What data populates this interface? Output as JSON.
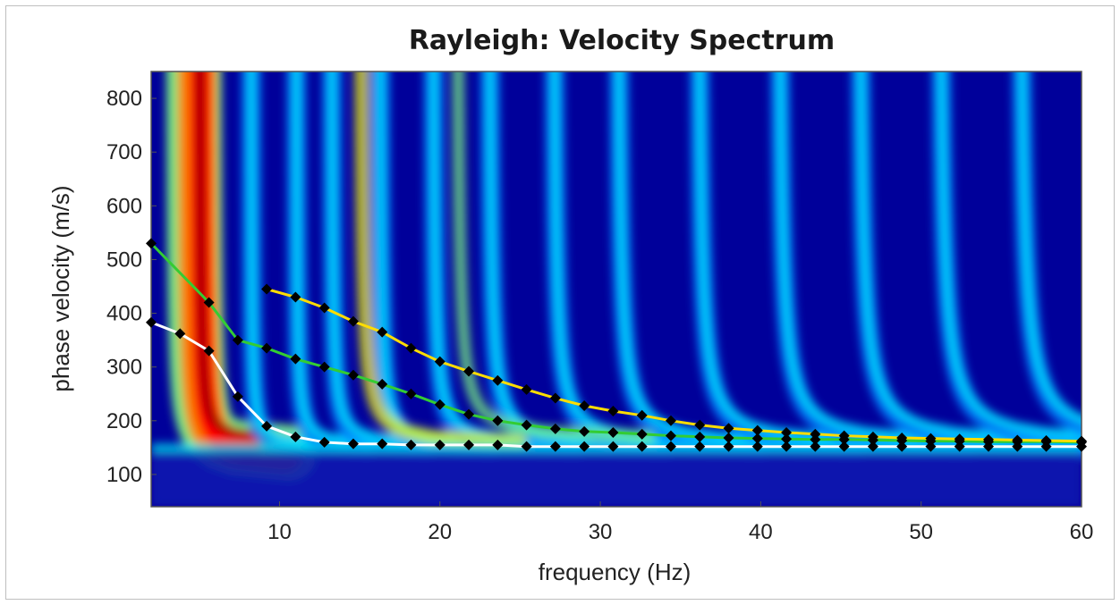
{
  "chart_data": {
    "type": "heatmap",
    "title": "Rayleigh: Velocity Spectrum",
    "xlabel": "frequency (Hz)",
    "ylabel": "phase velocity (m/s)",
    "xlim": [
      2,
      60
    ],
    "ylim": [
      40,
      850
    ],
    "xticks": [
      10,
      20,
      30,
      40,
      50,
      60
    ],
    "yticks": [
      100,
      200,
      300,
      400,
      500,
      600,
      700,
      800
    ],
    "colormap": [
      "#000080",
      "#0000ff",
      "#0080ff",
      "#00ffff",
      "#80ff80",
      "#ffff00",
      "#ff8000",
      "#ff0000",
      "#800000"
    ],
    "series": [
      {
        "line_color": "#ffffff",
        "marker_color": "#000000",
        "points": [
          [
            2,
            383
          ],
          [
            3.8,
            362
          ],
          [
            5.6,
            330
          ],
          [
            7.4,
            245
          ],
          [
            9.2,
            190
          ],
          [
            11,
            170
          ],
          [
            12.8,
            160
          ],
          [
            14.6,
            157
          ],
          [
            16.4,
            157
          ],
          [
            18.2,
            155
          ],
          [
            20,
            155
          ],
          [
            21.8,
            155
          ],
          [
            23.6,
            155
          ],
          [
            25.4,
            152
          ],
          [
            27.2,
            152
          ],
          [
            29,
            152
          ],
          [
            30.8,
            152
          ],
          [
            32.6,
            152
          ],
          [
            34.4,
            152
          ],
          [
            36.2,
            152
          ],
          [
            38,
            152
          ],
          [
            39.8,
            152
          ],
          [
            41.6,
            152
          ],
          [
            43.4,
            152
          ],
          [
            45.2,
            152
          ],
          [
            47,
            152
          ],
          [
            48.8,
            152
          ],
          [
            50.6,
            152
          ],
          [
            52.4,
            152
          ],
          [
            54.2,
            152
          ],
          [
            56,
            152
          ],
          [
            57.8,
            152
          ],
          [
            60,
            152
          ]
        ]
      },
      {
        "line_color": "#33cc33",
        "marker_color": "#000000",
        "points": [
          [
            2,
            530
          ],
          [
            5.6,
            420
          ],
          [
            7.4,
            350
          ],
          [
            9.2,
            335
          ],
          [
            11,
            315
          ],
          [
            12.8,
            300
          ],
          [
            14.6,
            285
          ],
          [
            16.4,
            268
          ],
          [
            18.2,
            250
          ],
          [
            20,
            230
          ],
          [
            21.8,
            212
          ],
          [
            23.6,
            200
          ],
          [
            25.4,
            192
          ],
          [
            27.2,
            185
          ],
          [
            29,
            180
          ],
          [
            30.8,
            178
          ],
          [
            32.6,
            175
          ],
          [
            34.4,
            172
          ],
          [
            36.2,
            170
          ],
          [
            38,
            168
          ],
          [
            39.8,
            167
          ],
          [
            41.6,
            166
          ],
          [
            43.4,
            165
          ],
          [
            45.2,
            165
          ],
          [
            47,
            164
          ],
          [
            48.8,
            163
          ],
          [
            50.6,
            162
          ],
          [
            52.4,
            162
          ],
          [
            54.2,
            161
          ],
          [
            56,
            161
          ],
          [
            57.8,
            161
          ],
          [
            60,
            160
          ]
        ]
      },
      {
        "line_color": "#ffdd00",
        "marker_color": "#000000",
        "points": [
          [
            9.2,
            445
          ],
          [
            11,
            430
          ],
          [
            12.8,
            410
          ],
          [
            14.6,
            385
          ],
          [
            16.4,
            365
          ],
          [
            18.2,
            335
          ],
          [
            20,
            310
          ],
          [
            21.8,
            292
          ],
          [
            23.6,
            275
          ],
          [
            25.4,
            258
          ],
          [
            27.2,
            242
          ],
          [
            29,
            228
          ],
          [
            30.8,
            218
          ],
          [
            32.6,
            210
          ],
          [
            34.4,
            200
          ],
          [
            36.2,
            192
          ],
          [
            38,
            186
          ],
          [
            39.8,
            182
          ],
          [
            41.6,
            178
          ],
          [
            43.4,
            175
          ],
          [
            45.2,
            172
          ],
          [
            47,
            170
          ],
          [
            48.8,
            168
          ],
          [
            50.6,
            167
          ],
          [
            52.4,
            166
          ],
          [
            54.2,
            165
          ],
          [
            56,
            164
          ],
          [
            57.8,
            163
          ],
          [
            60,
            162
          ]
        ]
      }
    ]
  }
}
